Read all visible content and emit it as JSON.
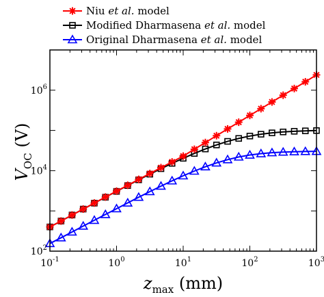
{
  "chart_data": {
    "type": "line",
    "x_scale": "log",
    "y_scale": "log",
    "xlim": [
      0.1,
      1000
    ],
    "ylim": [
      100,
      10000000
    ],
    "xlabel": "z_max (mm)",
    "ylabel": "V_OC (V)",
    "grid": false,
    "legend_placement": "top",
    "x_ticks": [
      {
        "base": "10",
        "exp": "-1",
        "value": 0.1
      },
      {
        "base": "10",
        "exp": "0",
        "value": 1
      },
      {
        "base": "10",
        "exp": "1",
        "value": 10
      },
      {
        "base": "10",
        "exp": "2",
        "value": 100
      },
      {
        "base": "10",
        "exp": "3",
        "value": 1000
      }
    ],
    "y_ticks": [
      {
        "base": "10",
        "exp": "2",
        "value": 100
      },
      {
        "base": "10",
        "exp": "4",
        "value": 10000
      },
      {
        "base": "10",
        "exp": "6",
        "value": 1000000
      }
    ],
    "x": [
      0.1,
      0.147,
      0.215,
      0.316,
      0.464,
      0.681,
      1.0,
      1.47,
      2.15,
      3.16,
      4.64,
      6.81,
      10.0,
      14.7,
      21.5,
      31.6,
      46.4,
      68.1,
      100,
      147,
      215,
      316,
      464,
      681,
      1000
    ],
    "series": [
      {
        "name_parts": [
          "Niu ",
          "et al.",
          " model"
        ],
        "color": "#ff0000",
        "marker": "asterisk",
        "values": [
          400,
          560,
          790,
          1110,
          1570,
          2210,
          3100,
          4340,
          6080,
          8500,
          11900,
          16500,
          23000,
          34000,
          50000,
          74000,
          109000,
          160000,
          236000,
          347000,
          510000,
          750000,
          1100000,
          1620000,
          2400000
        ]
      },
      {
        "name_parts": [
          "Modified Dharmasena ",
          "et al.",
          " model"
        ],
        "color": "#000000",
        "marker": "square",
        "values": [
          400,
          560,
          790,
          1110,
          1560,
          2190,
          3060,
          4270,
          5930,
          8180,
          11200,
          15200,
          20300,
          26800,
          34600,
          43600,
          53500,
          63300,
          72500,
          80500,
          87000,
          91800,
          95300,
          97600,
          99200
        ]
      },
      {
        "name_parts": [
          "Original Dharmasena ",
          "et al.",
          " model"
        ],
        "color": "#0000ff",
        "marker": "triangle",
        "values": [
          155,
          215,
          300,
          420,
          585,
          815,
          1135,
          1580,
          2190,
          3020,
          4130,
          5590,
          7460,
          9770,
          12500,
          15600,
          18800,
          21900,
          24500,
          26500,
          28000,
          29000,
          29600,
          30000,
          30200
        ]
      }
    ]
  }
}
